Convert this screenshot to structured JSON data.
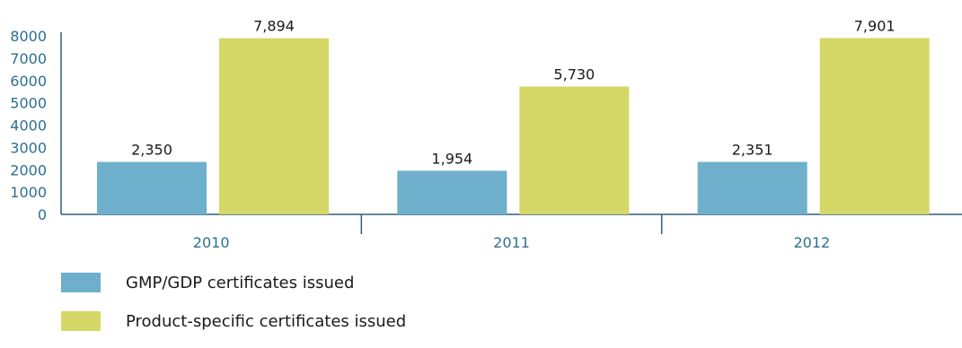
{
  "chart_data": {
    "type": "bar",
    "categories": [
      "2010",
      "2011",
      "2012"
    ],
    "series": [
      {
        "name": "GMP/GDP certificates issued",
        "values": [
          2350,
          1954,
          2351
        ],
        "labels": [
          "2,350",
          "1,954",
          "2,351"
        ]
      },
      {
        "name": "Product-specific certificates issued",
        "values": [
          7894,
          5730,
          7901
        ],
        "labels": [
          "7,894",
          "5,730",
          "7,901"
        ]
      }
    ],
    "yticks": [
      "0",
      "1000",
      "2000",
      "3000",
      "4000",
      "5000",
      "6000",
      "7000",
      "8000"
    ],
    "ylim": [
      0,
      8000
    ],
    "grid": false,
    "legend": "bottom-left"
  },
  "colors": {
    "series": [
      "#6eafcc",
      "#d5d766"
    ],
    "axis": "#2e5f7a",
    "tick_text": "#2e6f8f"
  }
}
